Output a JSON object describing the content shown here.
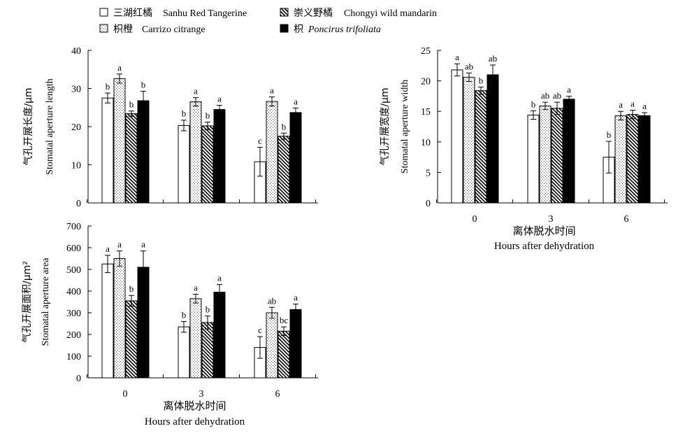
{
  "legend": [
    {
      "key": "sanhu",
      "zh": "三湖红橘",
      "en": "Sanhu Red Tangerine",
      "pattern": "empty",
      "italic": false
    },
    {
      "key": "chongyi",
      "zh": "崇义野橘",
      "en": "Chongyi wild mandarin",
      "pattern": "hatch",
      "italic": false
    },
    {
      "key": "carrizo",
      "zh": "枳橙",
      "en": "Carrizo citrange",
      "pattern": "dots",
      "italic": false
    },
    {
      "key": "trifoliata",
      "zh": "枳",
      "en": "Poncirus trifoliata",
      "pattern": "solid",
      "italic": true
    }
  ],
  "chart_data": [
    {
      "type": "bar",
      "ylabel_zh": "气孔开展长度/μm",
      "ylabel_en": "Stomatal aperture length",
      "xlabel_zh": "",
      "xlabel_en": "",
      "show_xtick_labels": false,
      "categories": [
        "0",
        "3",
        "6"
      ],
      "ylim": [
        0,
        40
      ],
      "yticks": [
        0,
        10,
        20,
        30,
        40
      ],
      "series": [
        {
          "name": "Sanhu Red Tangerine",
          "pattern": "empty",
          "values": [
            27.5,
            20.3,
            10.8
          ],
          "errors": [
            1.3,
            1.4,
            3.8
          ],
          "letters": [
            "b",
            "b",
            "c"
          ]
        },
        {
          "name": "Carrizo citrange",
          "pattern": "dots",
          "values": [
            32.6,
            26.5,
            26.6
          ],
          "errors": [
            1.2,
            1.1,
            1.2
          ],
          "letters": [
            "a",
            "a",
            "a"
          ]
        },
        {
          "name": "Chongyi wild mandarin",
          "pattern": "hatch",
          "values": [
            23.4,
            20.2,
            17.5
          ],
          "errors": [
            0.7,
            1.0,
            0.8
          ],
          "letters": [
            "b",
            "b",
            "b"
          ]
        },
        {
          "name": "Poncirus trifoliata",
          "pattern": "solid",
          "values": [
            26.8,
            24.5,
            23.7
          ],
          "errors": [
            2.5,
            1.1,
            1.2
          ],
          "letters": [
            "b",
            "a",
            "a"
          ]
        }
      ]
    },
    {
      "type": "bar",
      "ylabel_zh": "气孔开展宽度/μm",
      "ylabel_en": "Stomatal aperture width",
      "xlabel_zh": "离体脱水时间",
      "xlabel_en": "Hours after dehydration",
      "show_xtick_labels": true,
      "categories": [
        "0",
        "3",
        "6"
      ],
      "ylim": [
        0,
        25
      ],
      "yticks": [
        0,
        5,
        10,
        15,
        20,
        25
      ],
      "series": [
        {
          "name": "Sanhu Red Tangerine",
          "pattern": "empty",
          "values": [
            21.8,
            14.4,
            7.5
          ],
          "errors": [
            1.0,
            0.7,
            2.6
          ],
          "letters": [
            "a",
            "b",
            "b"
          ]
        },
        {
          "name": "Carrizo citrange",
          "pattern": "dots",
          "values": [
            20.6,
            15.9,
            14.3
          ],
          "errors": [
            0.7,
            0.6,
            0.7
          ],
          "letters": [
            "ab",
            "ab",
            "a"
          ]
        },
        {
          "name": "Chongyi wild mandarin",
          "pattern": "hatch",
          "values": [
            18.4,
            15.5,
            14.5
          ],
          "errors": [
            0.6,
            1.0,
            0.7
          ],
          "letters": [
            "b",
            "ab",
            "a"
          ]
        },
        {
          "name": "Poncirus trifoliata",
          "pattern": "solid",
          "values": [
            21.0,
            17.0,
            14.3
          ],
          "errors": [
            1.6,
            0.5,
            0.5
          ],
          "letters": [
            "ab",
            "a",
            "a"
          ]
        }
      ]
    },
    {
      "type": "bar",
      "ylabel_zh": "气孔开展面积/μm²",
      "ylabel_en": "Stomatal aperture area",
      "xlabel_zh": "离体脱水时间",
      "xlabel_en": "Hours after dehydration",
      "show_xtick_labels": true,
      "categories": [
        "0",
        "3",
        "6"
      ],
      "ylim": [
        0,
        700
      ],
      "yticks": [
        0,
        100,
        200,
        300,
        400,
        500,
        600,
        700
      ],
      "series": [
        {
          "name": "Sanhu Red Tangerine",
          "pattern": "empty",
          "values": [
            525,
            235,
            140
          ],
          "errors": [
            40,
            25,
            50
          ],
          "letters": [
            "a",
            "b",
            "c"
          ]
        },
        {
          "name": "Carrizo citrange",
          "pattern": "dots",
          "values": [
            550,
            365,
            300
          ],
          "errors": [
            35,
            20,
            25
          ],
          "letters": [
            "a",
            "a",
            "ab"
          ]
        },
        {
          "name": "Chongyi wild mandarin",
          "pattern": "hatch",
          "values": [
            355,
            255,
            215
          ],
          "errors": [
            25,
            30,
            20
          ],
          "letters": [
            "b",
            "b",
            "bc"
          ]
        },
        {
          "name": "Poncirus trifoliata",
          "pattern": "solid",
          "values": [
            510,
            395,
            315
          ],
          "errors": [
            75,
            35,
            25
          ],
          "letters": [
            "a",
            "a",
            "a"
          ]
        }
      ]
    }
  ]
}
